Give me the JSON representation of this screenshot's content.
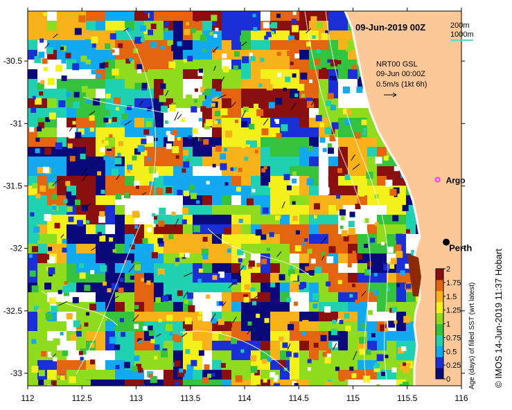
{
  "title": "09-Jun-2019 00Z",
  "depth_legend": [
    {
      "label": "200m",
      "color": "#000000"
    },
    {
      "label": "1000m",
      "color": "#55ddbb"
    }
  ],
  "current_legend": {
    "line1": "NRT00 GSL",
    "line2": "09-Jun 00:00Z",
    "line3": "0.5m/s (1kt 6h)"
  },
  "markers": {
    "argo": {
      "label": "Argo",
      "lon": 115.78,
      "lat": -31.45,
      "color": "#ff33ff"
    },
    "perth": {
      "label": "Perth",
      "lon": 115.86,
      "lat": -31.95,
      "color": "#000000"
    }
  },
  "axes": {
    "x_ticks": [
      "112",
      "112.5",
      "113",
      "113.5",
      "114",
      "114.5",
      "115",
      "115.5",
      "116"
    ],
    "x_values": [
      112,
      112.5,
      113,
      113.5,
      114,
      114.5,
      115,
      115.5,
      116
    ],
    "y_ticks": [
      "-30.5",
      "-31",
      "-31.5",
      "-32",
      "-32.5",
      "-33"
    ],
    "y_values": [
      -30.5,
      -31,
      -31.5,
      -32,
      -32.5,
      -33
    ],
    "lon_range": [
      112,
      116
    ],
    "lat_range": [
      -33.1,
      -30.1
    ]
  },
  "colorbar": {
    "label": "Age (days) of filled SST (wrt latest)",
    "ticks": [
      "0",
      "0.25",
      "0.5",
      "0.75",
      "1",
      "1.25",
      "1.5",
      "1.75",
      "2"
    ],
    "range": [
      0,
      2
    ],
    "colors": [
      "#0a0a7a",
      "#1a2fd6",
      "#13a9f0",
      "#1fd1b0",
      "#35c23c",
      "#8fdc1f",
      "#f3f01c",
      "#f7b21a",
      "#e4650f",
      "#8a0f0f"
    ]
  },
  "land_color": "#fcc898",
  "credit": "© IMOS 14-Jun-2019 11:37 Hobart"
}
